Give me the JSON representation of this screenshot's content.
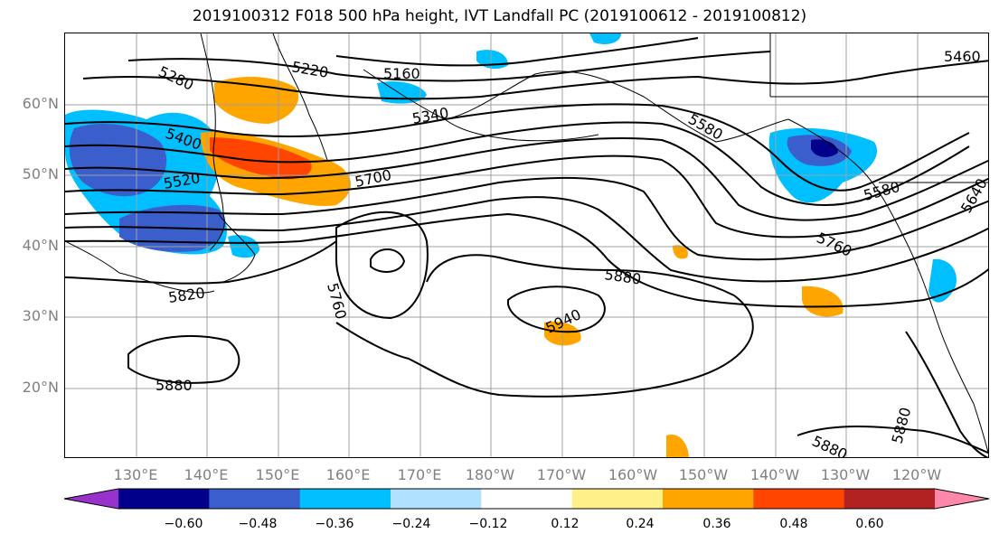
{
  "title": "2019100312 F018 500 hPa height, IVT Landfall PC (2019100612 - 2019100812)",
  "lat_labels": [
    "60°N",
    "50°N",
    "40°N",
    "30°N",
    "20°N"
  ],
  "lon_labels": [
    "130°E",
    "140°E",
    "150°E",
    "160°E",
    "170°E",
    "180°W",
    "170°W",
    "160°W",
    "150°W",
    "140°W",
    "130°W",
    "120°W"
  ],
  "contour_labels": [
    "5280",
    "5220",
    "5160",
    "5460",
    "5340",
    "5400",
    "5580",
    "5520",
    "5700",
    "5580",
    "5640",
    "5760",
    "5880",
    "5820",
    "5760",
    "5940",
    "5880",
    "5880",
    "5880"
  ],
  "colorbar": {
    "ticks": [
      "−0.60",
      "−0.48",
      "−0.36",
      "−0.24",
      "−0.12",
      "0.12",
      "0.24",
      "0.36",
      "0.48",
      "0.60"
    ],
    "colors": [
      "#9932cc",
      "#00008b",
      "#3a5fcd",
      "#00bfff",
      "#b0e2ff",
      "#ffffff",
      "#fff08a",
      "#ffa500",
      "#ff4500",
      "#b22222",
      "#ff88aa"
    ]
  }
}
